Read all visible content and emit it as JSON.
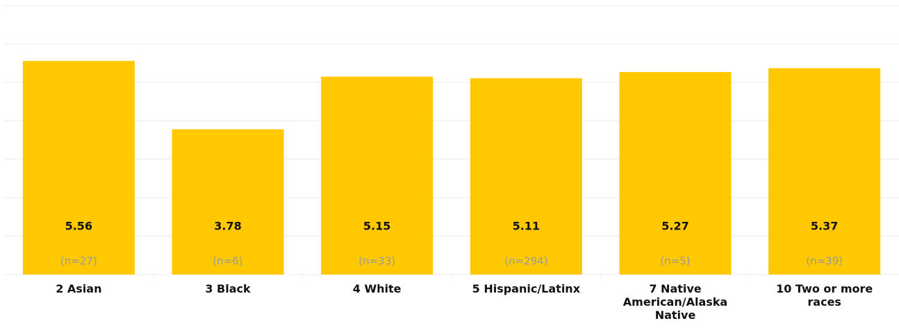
{
  "chart_data": {
    "type": "bar",
    "categories": [
      "2 Asian",
      "3 Black",
      "4 White",
      "5 Hispanic/Latinx",
      "7 Native American/Alaska Native",
      "10 Two or more races"
    ],
    "values": [
      5.56,
      3.78,
      5.15,
      5.11,
      5.27,
      5.37
    ],
    "sample_sizes": [
      "(n=27)",
      "(n=6)",
      "(n=33)",
      "(n=294)",
      "(n=5)",
      "(n=39)"
    ],
    "color": "#ffc800",
    "ylim": [
      0,
      7
    ],
    "yticks": [
      0,
      1,
      2,
      3,
      4,
      5,
      6,
      7
    ],
    "grid": true
  }
}
